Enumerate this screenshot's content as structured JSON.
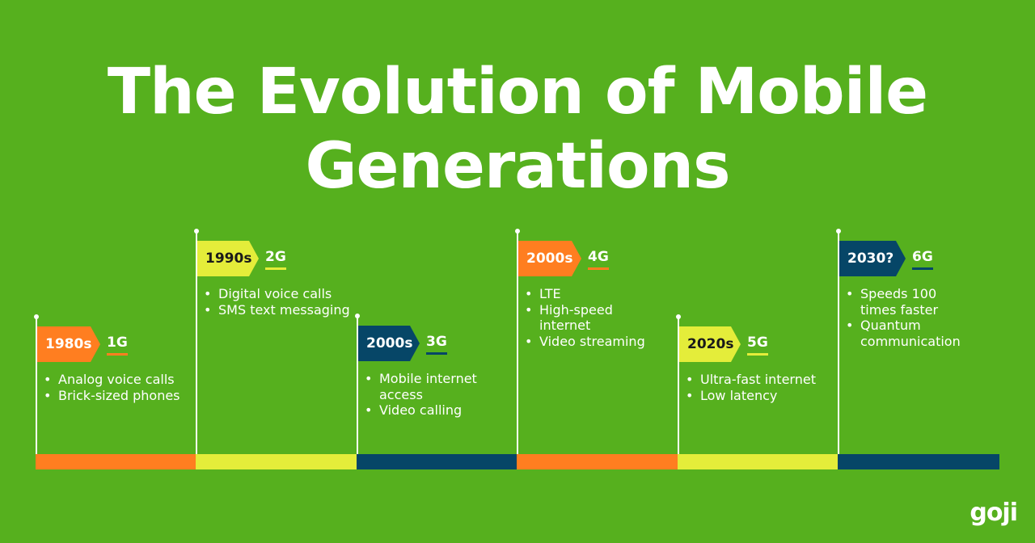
{
  "title": {
    "line1": "The Evolution of Mobile",
    "line2": "Generations"
  },
  "colors": {
    "background": "#56b01e",
    "orange": "#ff7e20",
    "yellow": "#e4ed3a",
    "navy": "#064667"
  },
  "generations": [
    {
      "year": "1980s",
      "gen": "1G",
      "color": "orange",
      "features": [
        "Analog voice calls",
        "Brick-sized phones"
      ]
    },
    {
      "year": "1990s",
      "gen": "2G",
      "color": "yellow",
      "features": [
        "Digital voice calls",
        "SMS text messaging"
      ]
    },
    {
      "year": "2000s",
      "gen": "3G",
      "color": "navy",
      "features": [
        "Mobile internet access",
        "Video calling"
      ]
    },
    {
      "year": "2000s",
      "gen": "4G",
      "color": "orange",
      "features": [
        "LTE",
        "High-speed internet",
        "Video streaming"
      ]
    },
    {
      "year": "2020s",
      "gen": "5G",
      "color": "yellow",
      "features": [
        "Ultra-fast internet",
        "Low latency"
      ]
    },
    {
      "year": "2030?",
      "gen": "6G",
      "color": "navy",
      "features": [
        "Speeds 100 times faster",
        "Quantum communication"
      ]
    }
  ],
  "logo": "goji"
}
